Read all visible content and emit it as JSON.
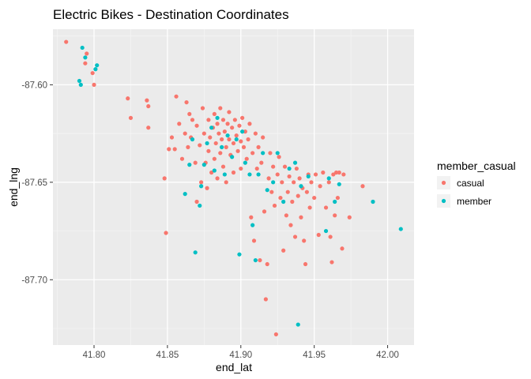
{
  "chart_data": {
    "type": "scatter",
    "title": "Electric Bikes - Destination Coordinates",
    "xlabel": "end_lat",
    "ylabel": "end_lng",
    "xlim": [
      41.772,
      42.018
    ],
    "ylim": [
      -87.7335,
      -87.7165
    ],
    "x_ticks": [
      41.8,
      41.85,
      41.9,
      41.95,
      42.0
    ],
    "x_tick_labels": [
      "41.80",
      "41.85",
      "41.90",
      "41.95",
      "42.00"
    ],
    "y_ticks": [
      -87.6,
      -87.65,
      -87.7
    ],
    "y_tick_labels": [
      "-87.60",
      "-87.65",
      "-87.70"
    ],
    "grid": true,
    "panel_background": "#ebebeb",
    "legend": {
      "title": "member_casual",
      "position": "right"
    },
    "series": [
      {
        "name": "casual",
        "color": "#f8766d",
        "points": [
          [
            41.781,
            -87.578
          ],
          [
            41.795,
            -87.584
          ],
          [
            41.794,
            -87.589
          ],
          [
            41.799,
            -87.594
          ],
          [
            41.8,
            -87.6
          ],
          [
            41.823,
            -87.607
          ],
          [
            41.825,
            -87.617
          ],
          [
            41.836,
            -87.608
          ],
          [
            41.837,
            -87.611
          ],
          [
            41.837,
            -87.622
          ],
          [
            41.848,
            -87.648
          ],
          [
            41.849,
            -87.676
          ],
          [
            41.851,
            -87.633
          ],
          [
            41.853,
            -87.627
          ],
          [
            41.855,
            -87.633
          ],
          [
            41.856,
            -87.606
          ],
          [
            41.858,
            -87.62
          ],
          [
            41.86,
            -87.638
          ],
          [
            41.862,
            -87.625
          ],
          [
            41.863,
            -87.609
          ],
          [
            41.864,
            -87.632
          ],
          [
            41.865,
            -87.615
          ],
          [
            41.866,
            -87.627
          ],
          [
            41.867,
            -87.618
          ],
          [
            41.869,
            -87.64
          ],
          [
            41.87,
            -87.621
          ],
          [
            41.87,
            -87.66
          ],
          [
            41.872,
            -87.631
          ],
          [
            41.873,
            -87.65
          ],
          [
            41.874,
            -87.612
          ],
          [
            41.875,
            -87.625
          ],
          [
            41.876,
            -87.64
          ],
          [
            41.877,
            -87.653
          ],
          [
            41.878,
            -87.618
          ],
          [
            41.878,
            -87.634
          ],
          [
            41.879,
            -87.627
          ],
          [
            41.88,
            -87.645
          ],
          [
            41.881,
            -87.622
          ],
          [
            41.882,
            -87.638
          ],
          [
            41.882,
            -87.615
          ],
          [
            41.883,
            -87.63
          ],
          [
            41.884,
            -87.62
          ],
          [
            41.884,
            -87.648
          ],
          [
            41.885,
            -87.625
          ],
          [
            41.886,
            -87.635
          ],
          [
            41.886,
            -87.612
          ],
          [
            41.887,
            -87.628
          ],
          [
            41.888,
            -87.618
          ],
          [
            41.888,
            -87.642
          ],
          [
            41.889,
            -87.624
          ],
          [
            41.89,
            -87.632
          ],
          [
            41.89,
            -87.65
          ],
          [
            41.891,
            -87.62
          ],
          [
            41.892,
            -87.628
          ],
          [
            41.892,
            -87.614
          ],
          [
            41.893,
            -87.636
          ],
          [
            41.894,
            -87.622
          ],
          [
            41.895,
            -87.63
          ],
          [
            41.895,
            -87.645
          ],
          [
            41.896,
            -87.618
          ],
          [
            41.897,
            -87.626
          ],
          [
            41.898,
            -87.634
          ],
          [
            41.899,
            -87.621
          ],
          [
            41.9,
            -87.629
          ],
          [
            41.9,
            -87.643
          ],
          [
            41.901,
            -87.617
          ],
          [
            41.902,
            -87.632
          ],
          [
            41.903,
            -87.624
          ],
          [
            41.904,
            -87.638
          ],
          [
            41.905,
            -87.628
          ],
          [
            41.906,
            -87.62
          ],
          [
            41.907,
            -87.668
          ],
          [
            41.908,
            -87.635
          ],
          [
            41.909,
            -87.68
          ],
          [
            41.91,
            -87.625
          ],
          [
            41.911,
            -87.643
          ],
          [
            41.912,
            -87.632
          ],
          [
            41.913,
            -87.69
          ],
          [
            41.914,
            -87.64
          ],
          [
            41.915,
            -87.627
          ],
          [
            41.916,
            -87.665
          ],
          [
            41.917,
            -87.71
          ],
          [
            41.918,
            -87.692
          ],
          [
            41.919,
            -87.648
          ],
          [
            41.92,
            -87.635
          ],
          [
            41.921,
            -87.655
          ],
          [
            41.922,
            -87.642
          ],
          [
            41.923,
            -87.662
          ],
          [
            41.924,
            -87.728
          ],
          [
            41.925,
            -87.646
          ],
          [
            41.926,
            -87.637
          ],
          [
            41.927,
            -87.658
          ],
          [
            41.928,
            -87.65
          ],
          [
            41.929,
            -87.685
          ],
          [
            41.93,
            -87.642
          ],
          [
            41.931,
            -87.667
          ],
          [
            41.932,
            -87.655
          ],
          [
            41.933,
            -87.647
          ],
          [
            41.934,
            -87.672
          ],
          [
            41.935,
            -87.66
          ],
          [
            41.936,
            -87.65
          ],
          [
            41.937,
            -87.678
          ],
          [
            41.938,
            -87.643
          ],
          [
            41.939,
            -87.657
          ],
          [
            41.94,
            -87.648
          ],
          [
            41.941,
            -87.668
          ],
          [
            41.942,
            -87.653
          ],
          [
            41.943,
            -87.68
          ],
          [
            41.944,
            -87.692
          ],
          [
            41.945,
            -87.655
          ],
          [
            41.946,
            -87.646
          ],
          [
            41.947,
            -87.663
          ],
          [
            41.948,
            -87.65
          ],
          [
            41.95,
            -87.658
          ],
          [
            41.951,
            -87.646
          ],
          [
            41.953,
            -87.677
          ],
          [
            41.954,
            -87.652
          ],
          [
            41.956,
            -87.645
          ],
          [
            41.958,
            -87.663
          ],
          [
            41.96,
            -87.65
          ],
          [
            41.961,
            -87.678
          ],
          [
            41.962,
            -87.691
          ],
          [
            41.963,
            -87.646
          ],
          [
            41.964,
            -87.667
          ],
          [
            41.965,
            -87.645
          ],
          [
            41.966,
            -87.658
          ],
          [
            41.967,
            -87.645
          ],
          [
            41.969,
            -87.684
          ],
          [
            41.97,
            -87.646
          ],
          [
            41.974,
            -87.668
          ],
          [
            41.983,
            -87.652
          ]
        ]
      },
      {
        "name": "member",
        "color": "#00bfc4",
        "points": [
          [
            41.792,
            -87.581
          ],
          [
            41.794,
            -87.586
          ],
          [
            41.79,
            -87.598
          ],
          [
            41.791,
            -87.6
          ],
          [
            41.802,
            -87.59
          ],
          [
            41.801,
            -87.592
          ],
          [
            41.862,
            -87.656
          ],
          [
            41.865,
            -87.641
          ],
          [
            41.867,
            -87.628
          ],
          [
            41.869,
            -87.686
          ],
          [
            41.872,
            -87.662
          ],
          [
            41.873,
            -87.652
          ],
          [
            41.875,
            -87.641
          ],
          [
            41.877,
            -87.63
          ],
          [
            41.88,
            -87.622
          ],
          [
            41.882,
            -87.644
          ],
          [
            41.884,
            -87.617
          ],
          [
            41.887,
            -87.632
          ],
          [
            41.889,
            -87.646
          ],
          [
            41.891,
            -87.626
          ],
          [
            41.894,
            -87.637
          ],
          [
            41.897,
            -87.628
          ],
          [
            41.899,
            -87.687
          ],
          [
            41.901,
            -87.624
          ],
          [
            41.903,
            -87.64
          ],
          [
            41.906,
            -87.646
          ],
          [
            41.908,
            -87.672
          ],
          [
            41.91,
            -87.69
          ],
          [
            41.912,
            -87.646
          ],
          [
            41.915,
            -87.635
          ],
          [
            41.918,
            -87.654
          ],
          [
            41.922,
            -87.65
          ],
          [
            41.925,
            -87.635
          ],
          [
            41.929,
            -87.66
          ],
          [
            41.933,
            -87.643
          ],
          [
            41.937,
            -87.64
          ],
          [
            41.939,
            -87.723
          ],
          [
            41.941,
            -87.652
          ],
          [
            41.946,
            -87.647
          ],
          [
            41.958,
            -87.675
          ],
          [
            41.96,
            -87.648
          ],
          [
            41.964,
            -87.66
          ],
          [
            41.967,
            -87.651
          ],
          [
            41.99,
            -87.66
          ],
          [
            42.009,
            -87.674
          ]
        ]
      }
    ]
  }
}
